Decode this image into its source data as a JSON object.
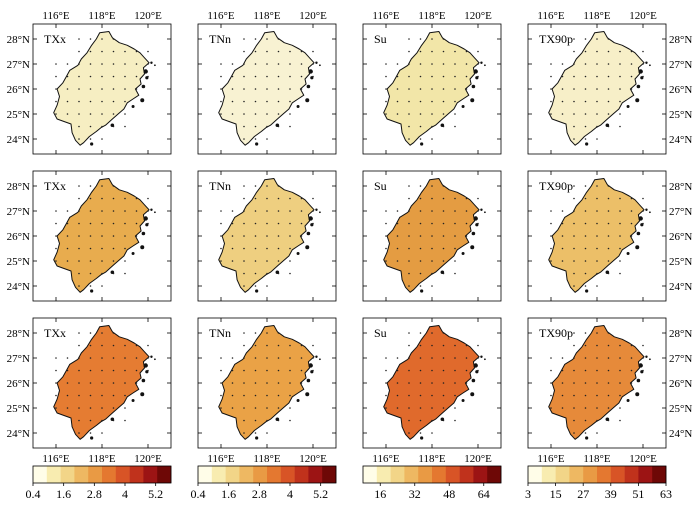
{
  "figure": {
    "lon_ticks": [
      "116°E",
      "118°E",
      "120°E"
    ],
    "lat_ticks": [
      "28°N",
      "27°N",
      "26°N",
      "25°N",
      "24°N"
    ],
    "columns": [
      {
        "index": "TXx",
        "colorbar": "txx"
      },
      {
        "index": "TNn",
        "colorbar": "tnn"
      },
      {
        "index": "Su",
        "colorbar": "su"
      },
      {
        "index": "TX90p",
        "colorbar": "tx90p"
      }
    ],
    "rows": [
      {
        "row": 1,
        "fills": {
          "TXx": "#f6eec2",
          "TNn": "#f8f2d2",
          "Su": "#f2e6a8",
          "TX90p": "#f7efc8"
        }
      },
      {
        "row": 2,
        "fills": {
          "TXx": "#e8ac4e",
          "TNn": "#eecf80",
          "Su": "#e49c42",
          "TX90p": "#ecbf68"
        }
      },
      {
        "row": 3,
        "fills": {
          "TXx": "#e57c32",
          "TNn": "#eaa246",
          "Su": "#e06a2c",
          "TX90p": "#e68a3a"
        }
      }
    ]
  },
  "chart_data": {
    "type": "heatmap",
    "title": "",
    "panels": [
      {
        "row": 1,
        "index": "TXx"
      },
      {
        "row": 1,
        "index": "TNn"
      },
      {
        "row": 1,
        "index": "Su"
      },
      {
        "row": 1,
        "index": "TX90p"
      },
      {
        "row": 2,
        "index": "TXx"
      },
      {
        "row": 2,
        "index": "TNn"
      },
      {
        "row": 2,
        "index": "Su"
      },
      {
        "row": 2,
        "index": "TX90p"
      },
      {
        "row": 3,
        "index": "TXx"
      },
      {
        "row": 3,
        "index": "TNn"
      },
      {
        "row": 3,
        "index": "Su"
      },
      {
        "row": 3,
        "index": "TX90p"
      }
    ],
    "x_range_lon": [
      115,
      121
    ],
    "y_range_lat": [
      23.4,
      28.6
    ],
    "colorbars": [
      {
        "id": "txx",
        "ticks": [
          "0.4",
          "1.6",
          "2.8",
          "4",
          "5.2"
        ],
        "tick_values": [
          0.4,
          1.6,
          2.8,
          4,
          5.2
        ],
        "range": [
          0.4,
          5.8
        ]
      },
      {
        "id": "tnn",
        "ticks": [
          "0.4",
          "1.6",
          "2.8",
          "4",
          "5.2"
        ],
        "tick_values": [
          0.4,
          1.6,
          2.8,
          4,
          5.2
        ],
        "range": [
          0.4,
          5.8
        ]
      },
      {
        "id": "su",
        "ticks": [
          "16",
          "32",
          "48",
          "64"
        ],
        "tick_values": [
          16,
          32,
          48,
          64
        ],
        "range": [
          8,
          72
        ]
      },
      {
        "id": "tx90p",
        "ticks": [
          "3",
          "15",
          "27",
          "39",
          "51",
          "63"
        ],
        "tick_values": [
          3,
          15,
          27,
          39,
          51,
          63
        ],
        "range": [
          3,
          63
        ]
      }
    ],
    "colormap": [
      "#fffde8",
      "#f8ecb0",
      "#f2d588",
      "#eeb862",
      "#e99a44",
      "#e47830",
      "#d85426",
      "#c0321c",
      "#9c1414",
      "#6e0806"
    ]
  }
}
